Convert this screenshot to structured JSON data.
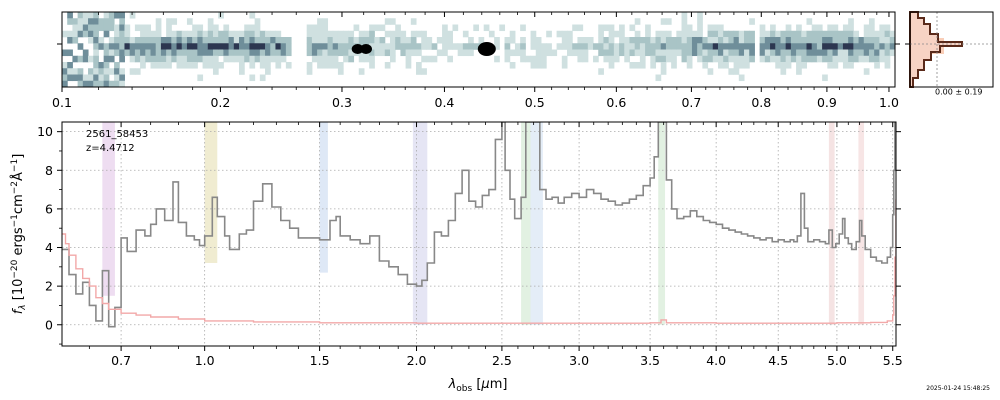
{
  "chart_data": [
    {
      "type": "heatmap",
      "name": "2D spectrum",
      "x_scale": "sqrt",
      "xlim": [
        0.1,
        1.01
      ],
      "x_ticks": [
        0.1,
        0.2,
        0.3,
        0.4,
        0.5,
        0.6,
        0.7,
        0.8,
        0.9,
        1.0
      ],
      "x_tick_labels": [
        "0.1",
        "0.2",
        "0.3",
        "0.4",
        "0.5",
        "0.6",
        "0.7",
        "0.8",
        "0.9",
        "1.0"
      ],
      "colormap": [
        "#ffffff",
        "#cfe0e0",
        "#a9c4c6",
        "#6f8e9a",
        "#2c3650",
        "#000000"
      ]
    },
    {
      "type": "area",
      "name": "Spatial profile",
      "annotation": "0.00 ± 0.19",
      "colors": {
        "fill": "#f7d3c4",
        "line": "#5a2a1a",
        "band": "#f4a67e"
      }
    },
    {
      "type": "line",
      "name": "1D spectrum",
      "annotation_lines": [
        "2561_58453",
        "z=4.4712"
      ],
      "xlabel": "λ_obs [μm]",
      "ylabel": "f_λ [10^-20 ergs^-1 cm^-2 Å^-1]",
      "xlim": [
        0.52,
        5.53
      ],
      "ylim": [
        -1.1,
        10.5
      ],
      "x_scale": "sqrt",
      "x_ticks": [
        0.7,
        1.0,
        1.5,
        2.0,
        2.5,
        3.0,
        3.5,
        4.0,
        4.5,
        5.0,
        5.5
      ],
      "x_tick_labels": [
        "0.7",
        "1.0",
        "1.5",
        "2.0",
        "2.5",
        "3.0",
        "3.5",
        "4.0",
        "4.5",
        "5.0",
        "5.5"
      ],
      "y_ticks": [
        0,
        2,
        4,
        6,
        8,
        10
      ],
      "y_tick_labels": [
        "0",
        "2",
        "4",
        "6",
        "8",
        "10"
      ],
      "grid": true,
      "series": [
        {
          "color": "#888888",
          "points": [
            [
              0.52,
              3.9
            ],
            [
              0.54,
              2.6
            ],
            [
              0.56,
              1.6
            ],
            [
              0.58,
              2.2
            ],
            [
              0.6,
              1.0
            ],
            [
              0.62,
              0.2
            ],
            [
              0.64,
              2.8
            ],
            [
              0.66,
              -0.1
            ],
            [
              0.68,
              0.9
            ],
            [
              0.7,
              4.5
            ],
            [
              0.72,
              3.8
            ],
            [
              0.75,
              4.9
            ],
            [
              0.78,
              4.6
            ],
            [
              0.8,
              5.2
            ],
            [
              0.82,
              6.0
            ],
            [
              0.85,
              5.4
            ],
            [
              0.88,
              7.4
            ],
            [
              0.9,
              5.3
            ],
            [
              0.93,
              4.6
            ],
            [
              0.96,
              4.4
            ],
            [
              0.98,
              4.1
            ],
            [
              1.0,
              4.6
            ],
            [
              1.03,
              6.6
            ],
            [
              1.05,
              5.6
            ],
            [
              1.08,
              4.6
            ],
            [
              1.1,
              3.9
            ],
            [
              1.14,
              4.7
            ],
            [
              1.17,
              4.9
            ],
            [
              1.2,
              6.4
            ],
            [
              1.24,
              7.3
            ],
            [
              1.28,
              6.1
            ],
            [
              1.32,
              5.4
            ],
            [
              1.36,
              5.0
            ],
            [
              1.4,
              4.5
            ],
            [
              1.45,
              4.5
            ],
            [
              1.5,
              4.4
            ],
            [
              1.55,
              5.4
            ],
            [
              1.58,
              5.6
            ],
            [
              1.6,
              4.6
            ],
            [
              1.65,
              4.4
            ],
            [
              1.7,
              4.2
            ],
            [
              1.75,
              4.6
            ],
            [
              1.8,
              3.3
            ],
            [
              1.85,
              3.0
            ],
            [
              1.9,
              2.6
            ],
            [
              1.95,
              2.1
            ],
            [
              2.0,
              2.0
            ],
            [
              2.03,
              2.3
            ],
            [
              2.06,
              3.2
            ],
            [
              2.1,
              4.8
            ],
            [
              2.14,
              4.6
            ],
            [
              2.18,
              5.4
            ],
            [
              2.22,
              6.8
            ],
            [
              2.26,
              8.0
            ],
            [
              2.3,
              6.4
            ],
            [
              2.34,
              6.1
            ],
            [
              2.38,
              6.7
            ],
            [
              2.42,
              7.0
            ],
            [
              2.46,
              9.6
            ],
            [
              2.5,
              10.5
            ],
            [
              2.52,
              8.0
            ],
            [
              2.55,
              6.5
            ],
            [
              2.58,
              5.5
            ],
            [
              2.62,
              6.6
            ],
            [
              2.65,
              10.5
            ],
            [
              2.7,
              10.5
            ],
            [
              2.74,
              7.0
            ],
            [
              2.78,
              6.5
            ],
            [
              2.82,
              6.6
            ],
            [
              2.86,
              6.3
            ],
            [
              2.9,
              6.6
            ],
            [
              2.95,
              6.8
            ],
            [
              3.0,
              6.6
            ],
            [
              3.05,
              7.0
            ],
            [
              3.1,
              6.8
            ],
            [
              3.15,
              6.5
            ],
            [
              3.2,
              6.4
            ],
            [
              3.25,
              6.2
            ],
            [
              3.3,
              6.3
            ],
            [
              3.35,
              6.5
            ],
            [
              3.4,
              6.7
            ],
            [
              3.45,
              7.2
            ],
            [
              3.5,
              7.6
            ],
            [
              3.53,
              8.7
            ],
            [
              3.56,
              10.5
            ],
            [
              3.59,
              10.5
            ],
            [
              3.62,
              7.5
            ],
            [
              3.66,
              6.0
            ],
            [
              3.7,
              5.5
            ],
            [
              3.75,
              5.6
            ],
            [
              3.8,
              5.9
            ],
            [
              3.85,
              5.6
            ],
            [
              3.9,
              5.4
            ],
            [
              3.95,
              5.3
            ],
            [
              4.0,
              5.2
            ],
            [
              4.05,
              5.0
            ],
            [
              4.1,
              4.9
            ],
            [
              4.15,
              4.8
            ],
            [
              4.2,
              4.7
            ],
            [
              4.25,
              4.6
            ],
            [
              4.3,
              4.5
            ],
            [
              4.35,
              4.4
            ],
            [
              4.4,
              4.5
            ],
            [
              4.45,
              4.3
            ],
            [
              4.5,
              4.4
            ],
            [
              4.55,
              4.3
            ],
            [
              4.6,
              4.4
            ],
            [
              4.63,
              4.3
            ],
            [
              4.66,
              4.6
            ],
            [
              4.69,
              6.8
            ],
            [
              4.72,
              5.0
            ],
            [
              4.75,
              4.3
            ],
            [
              4.8,
              4.4
            ],
            [
              4.85,
              4.3
            ],
            [
              4.9,
              4.2
            ],
            [
              4.93,
              4.9
            ],
            [
              4.96,
              4.0
            ],
            [
              4.99,
              4.2
            ],
            [
              5.02,
              4.7
            ],
            [
              5.05,
              5.5
            ],
            [
              5.07,
              4.5
            ],
            [
              5.1,
              4.2
            ],
            [
              5.13,
              3.9
            ],
            [
              5.17,
              4.3
            ],
            [
              5.2,
              5.4
            ],
            [
              5.22,
              4.6
            ],
            [
              5.25,
              3.9
            ],
            [
              5.3,
              3.5
            ],
            [
              5.35,
              3.3
            ],
            [
              5.4,
              3.2
            ],
            [
              5.45,
              3.5
            ],
            [
              5.48,
              4.0
            ],
            [
              5.5,
              5.7
            ],
            [
              5.51,
              8.0
            ],
            [
              5.52,
              10.5
            ]
          ]
        },
        {
          "color": "#f2a8a8",
          "points": [
            [
              0.52,
              4.7
            ],
            [
              0.53,
              4.2
            ],
            [
              0.54,
              3.6
            ],
            [
              0.56,
              2.9
            ],
            [
              0.58,
              2.4
            ],
            [
              0.6,
              2.0
            ],
            [
              0.62,
              1.4
            ],
            [
              0.64,
              1.1
            ],
            [
              0.66,
              0.8
            ],
            [
              0.7,
              0.6
            ],
            [
              0.75,
              0.5
            ],
            [
              0.8,
              0.4
            ],
            [
              0.9,
              0.3
            ],
            [
              1.0,
              0.2
            ],
            [
              1.2,
              0.15
            ],
            [
              1.5,
              0.1
            ],
            [
              2.0,
              0.08
            ],
            [
              2.5,
              0.08
            ],
            [
              3.0,
              0.08
            ],
            [
              3.5,
              0.1
            ],
            [
              3.58,
              0.25
            ],
            [
              3.62,
              0.1
            ],
            [
              4.0,
              0.08
            ],
            [
              4.5,
              0.08
            ],
            [
              5.0,
              0.1
            ],
            [
              5.3,
              0.12
            ],
            [
              5.45,
              0.2
            ],
            [
              5.5,
              0.5
            ],
            [
              5.51,
              1.5
            ],
            [
              5.52,
              3.5
            ],
            [
              5.53,
              6.5
            ]
          ]
        }
      ],
      "bands": [
        {
          "x0": 0.64,
          "x1": 0.68,
          "ymin": 1.5,
          "color": "#d9b3e0"
        },
        {
          "x0": 1.0,
          "x1": 1.05,
          "ymin": 3.2,
          "color": "#ddd59a"
        },
        {
          "x0": 1.5,
          "x1": 1.54,
          "ymin": 2.7,
          "color": "#b6cdea"
        },
        {
          "x0": 1.98,
          "x1": 2.06,
          "ymin": 0.0,
          "color": "#c6c6e6"
        },
        {
          "x0": 2.62,
          "x1": 2.68,
          "ymin": 0.0,
          "color": "#bfe0bf"
        },
        {
          "x0": 2.68,
          "x1": 2.76,
          "ymin": 0.0,
          "color": "#c4d8ee"
        },
        {
          "x0": 3.56,
          "x1": 3.61,
          "ymin": 0.0,
          "color": "#bfe0bf"
        },
        {
          "x0": 4.93,
          "x1": 4.98,
          "ymin": 0.0,
          "color": "#e8c2c2"
        },
        {
          "x0": 5.19,
          "x1": 5.24,
          "ymin": 0.0,
          "color": "#eec6c6"
        }
      ]
    }
  ],
  "footer": {
    "timestamp": "2025-01-24 15:48:25"
  }
}
